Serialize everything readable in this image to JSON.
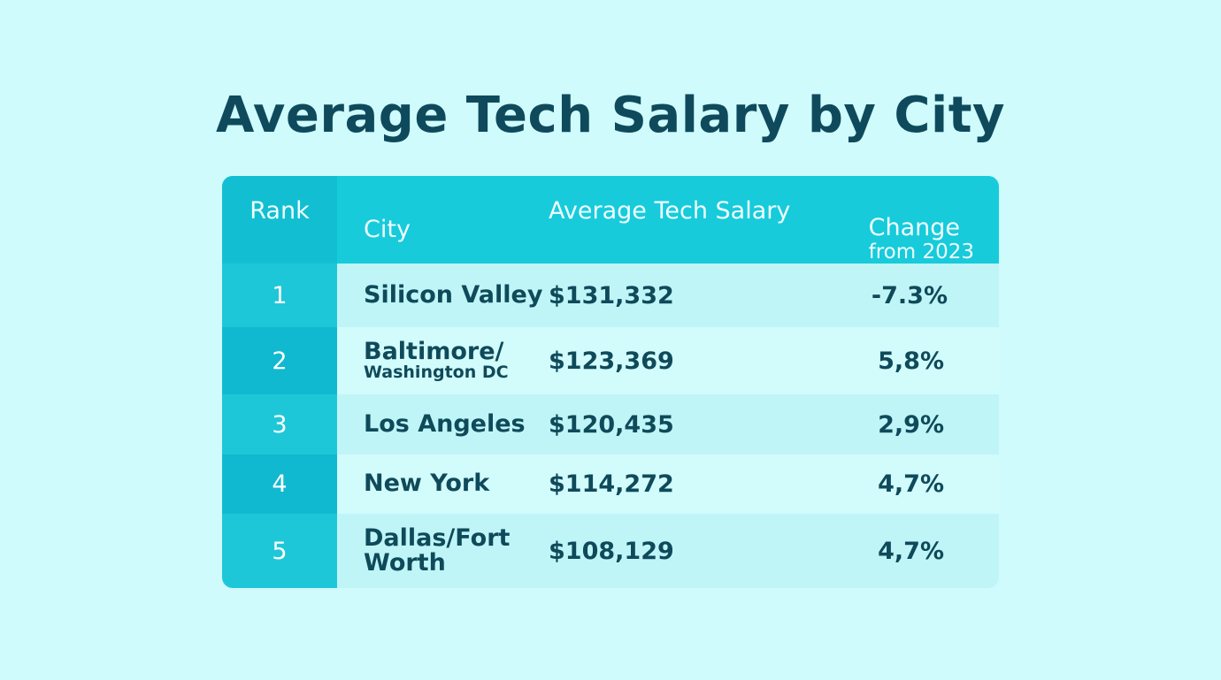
{
  "title": "Average Tech Salary by City",
  "colors": {
    "background": "#cffbfc",
    "header": "#17cbdb",
    "rank_header": "#12bfd2",
    "text": "#0f4a5a"
  },
  "chart_data": {
    "type": "table",
    "title": "Average Tech Salary by City",
    "columns": [
      "Rank",
      "City",
      "Average Tech Salary",
      "Change from 2023"
    ],
    "header": {
      "rank": "Rank",
      "city": "City",
      "salary": "Average Tech Salary",
      "change_line1": "Change",
      "change_line2": "from 2023"
    },
    "rows": [
      {
        "rank": "1",
        "city": "Silicon Valley",
        "city_sub": "",
        "salary": "$131,332",
        "change": "-7.3%"
      },
      {
        "rank": "2",
        "city": "Baltimore/",
        "city_sub": "Washington DC",
        "salary": "$123,369",
        "change": "5,8%"
      },
      {
        "rank": "3",
        "city": "Los Angeles",
        "city_sub": "",
        "salary": "$120,435",
        "change": "2,9%"
      },
      {
        "rank": "4",
        "city": "New York",
        "city_sub": "",
        "salary": "$114,272",
        "change": "4,7%"
      },
      {
        "rank": "5",
        "city": "Dallas/Fort",
        "city_sub": "Worth",
        "salary": "$108,129",
        "change": "4,7%"
      }
    ]
  }
}
